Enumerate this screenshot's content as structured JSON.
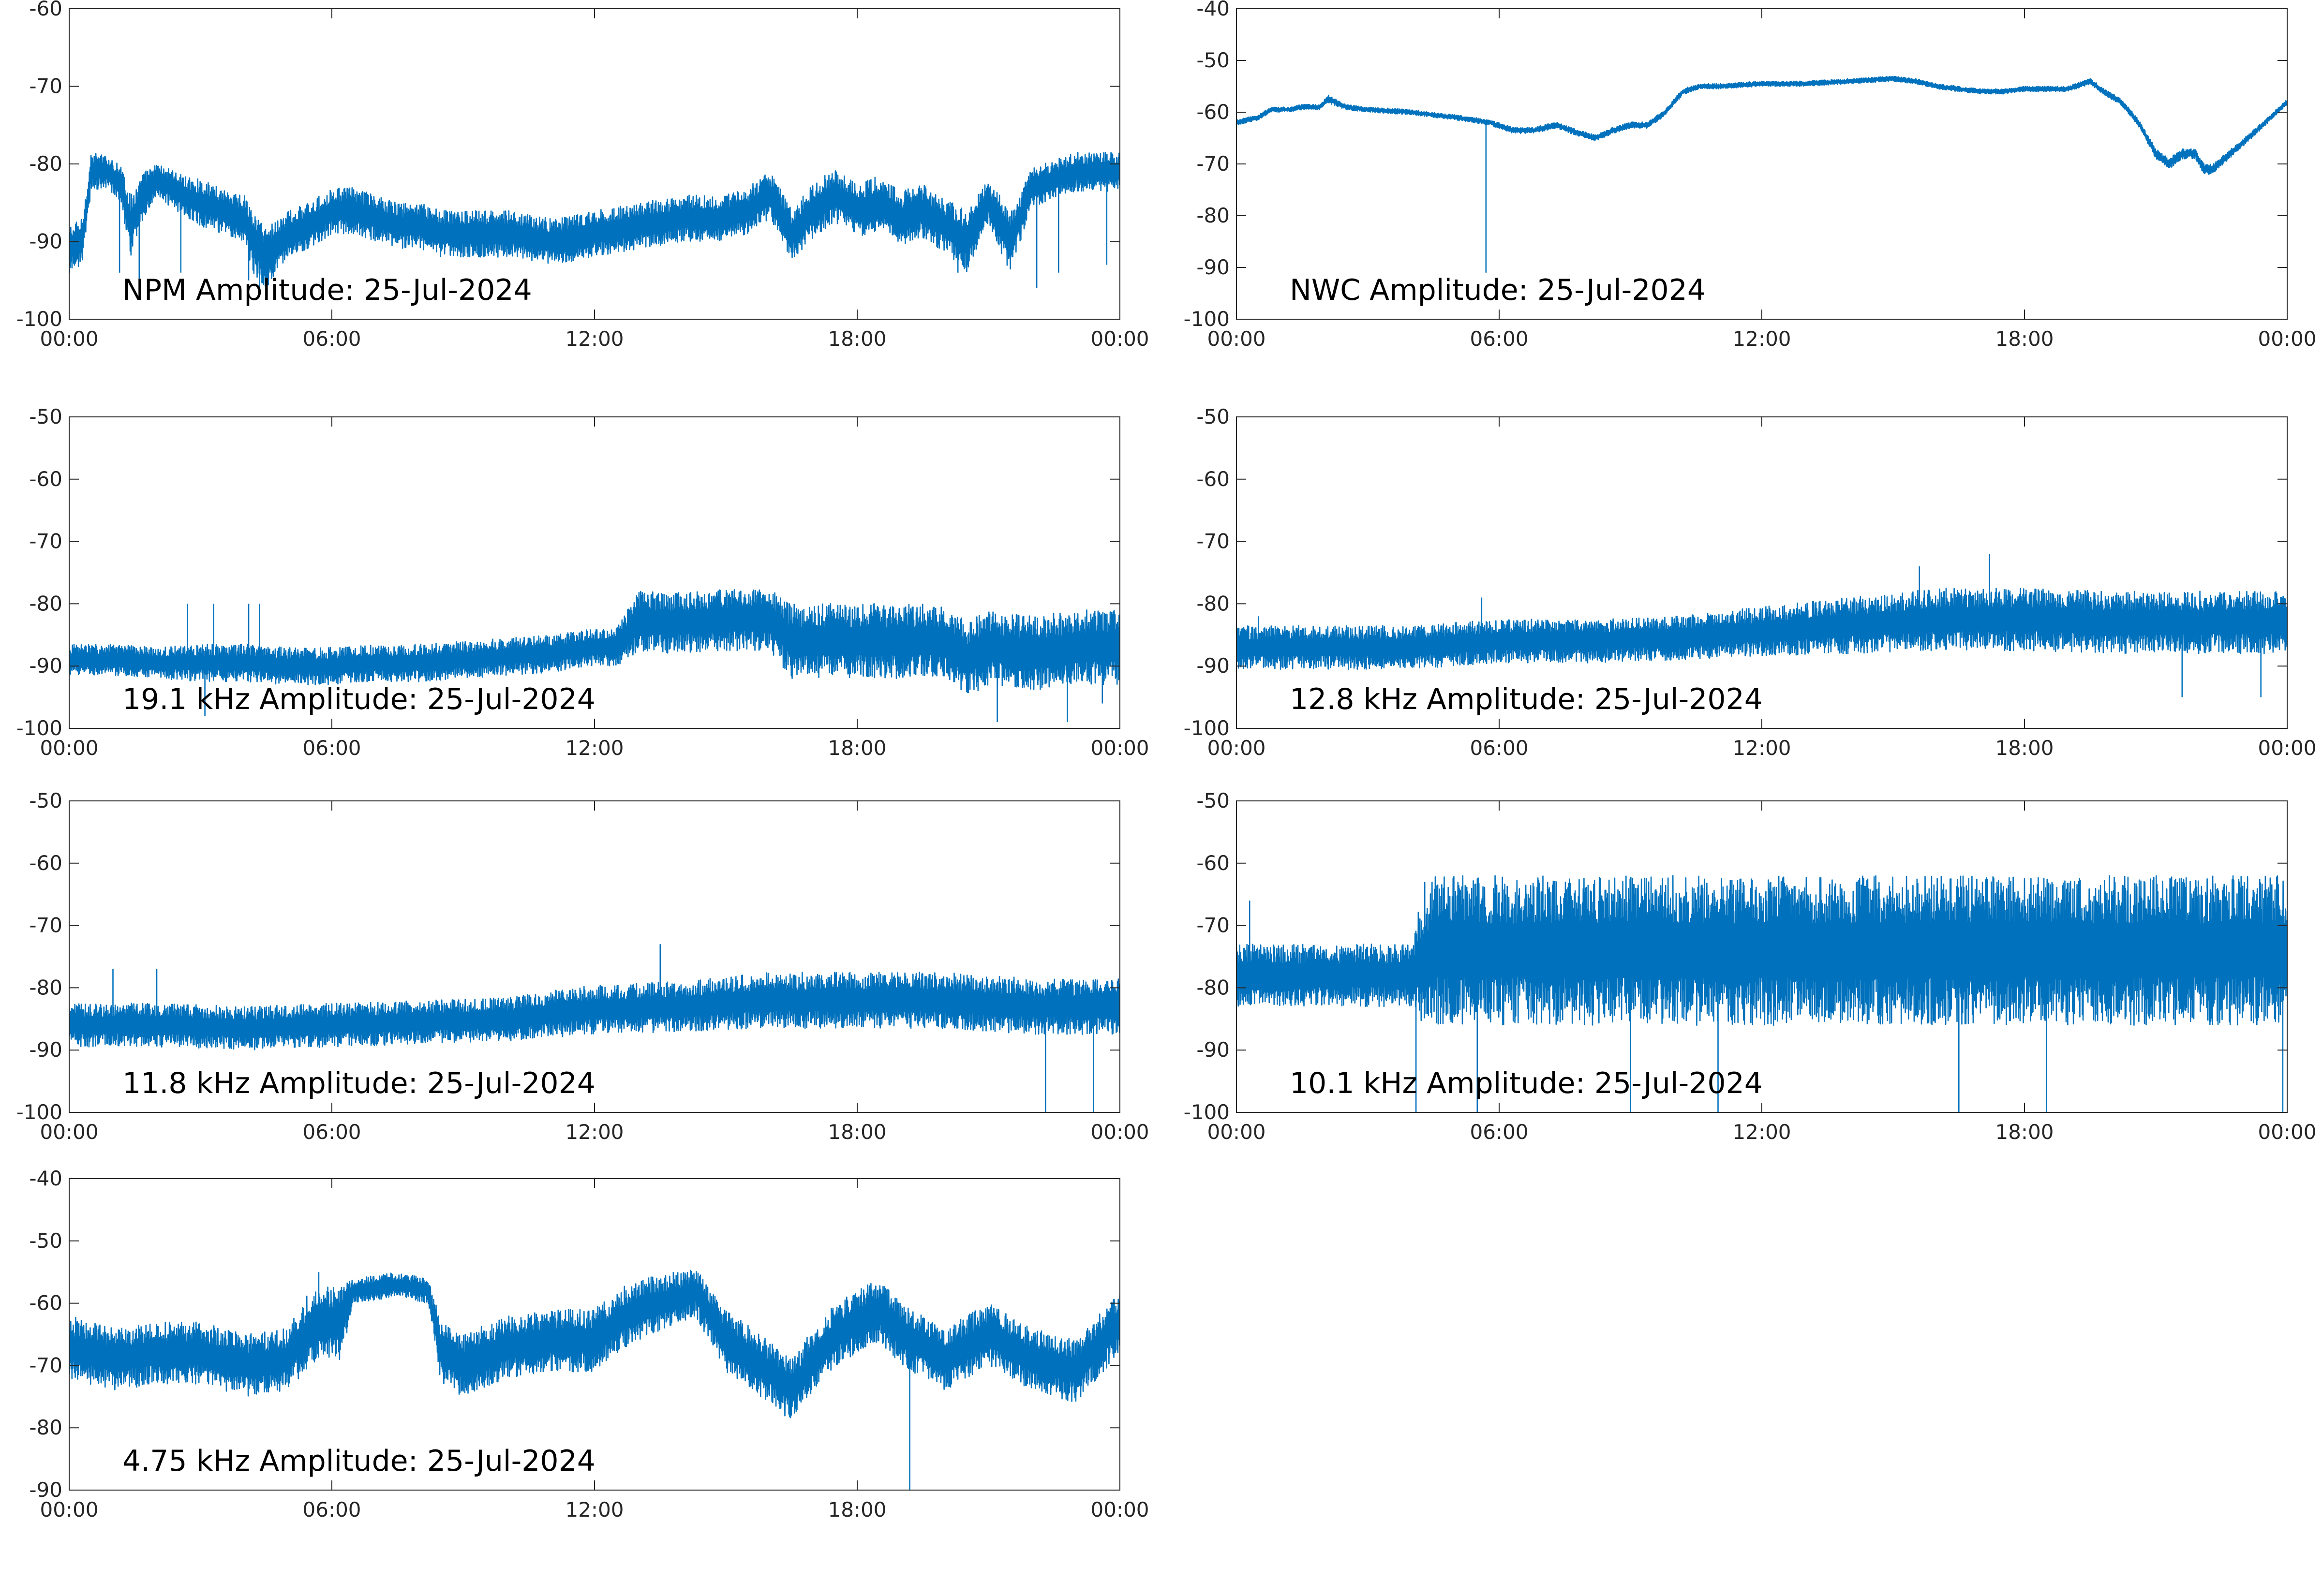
{
  "figure": {
    "line_color": "#0072bd",
    "axes_color": "#262626",
    "background": "#ffffff"
  },
  "chart_data": [
    {
      "type": "line",
      "title": "NPM Amplitude: 25-Jul-2024",
      "xlabel": "",
      "ylabel": "",
      "xticks": [
        "00:00",
        "06:00",
        "12:00",
        "18:00",
        "00:00"
      ],
      "xlim_hours": [
        0,
        24
      ],
      "ylim": [
        -100,
        -60
      ],
      "yticks": [
        -100,
        -90,
        -80,
        -70,
        -60
      ],
      "grid": false,
      "series": [
        {
          "x_hours": [
            0.0,
            0.3,
            0.5,
            0.9,
            1.2,
            1.4,
            1.7,
            2.0,
            2.3,
            2.6,
            3.0,
            3.5,
            4.0,
            4.2,
            4.5,
            5.0,
            5.5,
            6.0,
            6.5,
            7.0,
            7.5,
            8.0,
            8.5,
            9.0,
            9.5,
            10.0,
            11.0,
            12.0,
            13.0,
            14.0,
            15.0,
            15.5,
            16.0,
            16.5,
            17.0,
            17.5,
            18.0,
            18.5,
            19.0,
            19.5,
            20.0,
            20.5,
            21.0,
            21.5,
            22.0,
            22.5,
            23.0,
            23.5,
            24.0
          ],
          "values": [
            -91,
            -90,
            -81,
            -81,
            -83,
            -88,
            -84,
            -82,
            -83,
            -84,
            -85,
            -86,
            -87,
            -90,
            -92,
            -89,
            -88,
            -86,
            -86,
            -87,
            -88,
            -88,
            -89,
            -89,
            -89,
            -89,
            -90,
            -89,
            -88,
            -87,
            -87,
            -86,
            -84,
            -89,
            -86,
            -84,
            -86,
            -85,
            -87,
            -86,
            -88,
            -90,
            -85,
            -90,
            -83,
            -82,
            -81,
            -81,
            -81
          ],
          "spread": [
            3,
            3,
            2.5,
            2,
            3,
            4,
            3,
            2,
            2.5,
            2.5,
            3,
            3,
            3,
            4,
            4,
            3,
            3,
            3,
            3,
            3,
            3,
            3,
            3,
            3,
            3,
            3,
            3,
            3,
            3,
            3,
            3,
            3,
            3,
            3.5,
            3.5,
            3.5,
            3.5,
            3.5,
            3.5,
            3.5,
            3.5,
            4,
            3,
            4,
            2.5,
            2.5,
            2.5,
            2.5,
            2.5
          ],
          "spikes": [
            [
              1.15,
              -94
            ],
            [
              1.6,
              -96
            ],
            [
              2.55,
              -94
            ],
            [
              4.1,
              -95
            ],
            [
              4.35,
              -96
            ],
            [
              20.3,
              -94
            ],
            [
              22.1,
              -96
            ],
            [
              22.6,
              -94
            ],
            [
              23.7,
              -93
            ]
          ]
        }
      ]
    },
    {
      "type": "line",
      "title": "NWC Amplitude: 25-Jul-2024",
      "xlabel": "",
      "ylabel": "",
      "xticks": [
        "00:00",
        "06:00",
        "12:00",
        "18:00",
        "00:00"
      ],
      "xlim_hours": [
        0,
        24
      ],
      "ylim": [
        -100,
        -40
      ],
      "yticks": [
        -100,
        -90,
        -80,
        -70,
        -60,
        -50,
        -40
      ],
      "grid": false,
      "series": [
        {
          "x_hours": [
            0.0,
            0.5,
            0.8,
            1.2,
            1.5,
            1.9,
            2.1,
            2.5,
            3.0,
            4.0,
            5.0,
            5.8,
            6.3,
            6.8,
            7.3,
            7.8,
            8.2,
            8.6,
            9.0,
            9.4,
            9.8,
            10.2,
            10.6,
            11.0,
            12.0,
            13.0,
            14.0,
            15.0,
            15.5,
            16.0,
            16.5,
            17.0,
            17.5,
            18.0,
            19.0,
            19.5,
            19.8,
            20.2,
            20.6,
            21.0,
            21.3,
            21.6,
            21.9,
            22.1,
            22.3,
            22.7,
            23.1,
            23.5,
            24.0
          ],
          "values": [
            -62,
            -61,
            -59.5,
            -59.5,
            -59,
            -59,
            -57.5,
            -59,
            -59.5,
            -60,
            -61,
            -62,
            -63.5,
            -63.5,
            -62.5,
            -64,
            -65,
            -63.5,
            -62.5,
            -62.5,
            -60,
            -56,
            -55,
            -55,
            -54.5,
            -54.5,
            -54,
            -53.5,
            -54,
            -55,
            -55.5,
            -56,
            -56,
            -55.5,
            -55.5,
            -54,
            -56,
            -58,
            -62,
            -68,
            -70,
            -68,
            -68,
            -71,
            -71,
            -68,
            -65,
            -62,
            -58
          ],
          "spread": [
            0.5,
            0.5,
            0.5,
            0.5,
            0.5,
            0.5,
            0.8,
            0.5,
            0.5,
            0.5,
            0.5,
            0.5,
            0.6,
            0.6,
            0.6,
            0.6,
            0.6,
            0.6,
            0.6,
            0.6,
            0.6,
            0.6,
            0.5,
            0.5,
            0.5,
            0.5,
            0.5,
            0.5,
            0.5,
            0.5,
            0.5,
            0.5,
            0.5,
            0.5,
            0.5,
            0.6,
            0.6,
            0.6,
            0.7,
            1,
            1,
            1,
            1,
            1,
            1,
            0.8,
            0.7,
            0.6,
            0.5
          ],
          "spikes": [
            [
              5.7,
              -91
            ]
          ]
        }
      ]
    },
    {
      "type": "line",
      "title": "19.1 kHz Amplitude: 25-Jul-2024",
      "xlabel": "",
      "ylabel": "",
      "xticks": [
        "00:00",
        "06:00",
        "12:00",
        "18:00",
        "00:00"
      ],
      "xlim_hours": [
        0,
        24
      ],
      "ylim": [
        -100,
        -50
      ],
      "yticks": [
        -100,
        -90,
        -80,
        -70,
        -60,
        -50
      ],
      "grid": false,
      "series": [
        {
          "x_hours": [
            0.0,
            1.0,
            2.0,
            3.0,
            4.0,
            5.0,
            6.0,
            7.0,
            8.0,
            9.0,
            10.0,
            11.0,
            12.0,
            12.5,
            13.0,
            14.0,
            15.0,
            16.0,
            16.5,
            17.0,
            18.0,
            19.0,
            20.0,
            20.5,
            21.0,
            22.0,
            23.0,
            24.0
          ],
          "values": [
            -89,
            -89,
            -89.5,
            -89.5,
            -89.5,
            -90,
            -90,
            -89.5,
            -89.5,
            -89,
            -88.5,
            -88,
            -87,
            -87,
            -83,
            -83,
            -82.5,
            -82.5,
            -86,
            -86,
            -86,
            -86,
            -86,
            -89,
            -87,
            -88,
            -87,
            -87
          ],
          "spread": [
            2.5,
            2.5,
            2.5,
            3,
            3,
            3,
            3,
            3,
            3,
            3,
            3,
            3,
            3,
            3,
            5,
            5,
            5,
            5,
            6,
            6,
            6,
            6,
            6,
            6,
            6,
            6,
            6,
            6
          ],
          "spikes": [
            [
              2.7,
              -80
            ],
            [
              3.1,
              -98
            ],
            [
              3.3,
              -80
            ],
            [
              4.1,
              -80
            ],
            [
              4.35,
              -80
            ],
            [
              21.2,
              -99
            ],
            [
              22.8,
              -99
            ],
            [
              23.6,
              -96
            ]
          ]
        }
      ]
    },
    {
      "type": "line",
      "title": "12.8 kHz Amplitude: 25-Jul-2024",
      "xlabel": "",
      "ylabel": "",
      "xticks": [
        "00:00",
        "06:00",
        "12:00",
        "18:00",
        "00:00"
      ],
      "xlim_hours": [
        0,
        24
      ],
      "ylim": [
        -100,
        -50
      ],
      "yticks": [
        -100,
        -90,
        -80,
        -70,
        -60,
        -50
      ],
      "grid": false,
      "series": [
        {
          "x_hours": [
            0.0,
            2.0,
            4.0,
            6.0,
            8.0,
            10.0,
            12.0,
            14.0,
            16.0,
            18.0,
            20.0,
            22.0,
            24.0
          ],
          "values": [
            -87,
            -87,
            -87,
            -86,
            -86,
            -85.5,
            -84.5,
            -83.5,
            -82.5,
            -82.5,
            -83,
            -83,
            -83
          ],
          "spread": [
            3.5,
            3.5,
            3.5,
            3.5,
            3.5,
            3.5,
            4,
            4.5,
            5,
            5,
            5,
            5,
            5
          ],
          "spikes": [
            [
              0.5,
              -82
            ],
            [
              5.6,
              -79
            ],
            [
              15.6,
              -74
            ],
            [
              17.2,
              -72
            ],
            [
              21.6,
              -95
            ],
            [
              23.4,
              -95
            ]
          ]
        }
      ]
    },
    {
      "type": "line",
      "title": "11.8 kHz Amplitude: 25-Jul-2024",
      "xlabel": "",
      "ylabel": "",
      "xticks": [
        "00:00",
        "06:00",
        "12:00",
        "18:00",
        "00:00"
      ],
      "xlim_hours": [
        0,
        24
      ],
      "ylim": [
        -100,
        -50
      ],
      "yticks": [
        -100,
        -90,
        -80,
        -70,
        -60,
        -50
      ],
      "grid": false,
      "series": [
        {
          "x_hours": [
            0.0,
            2.0,
            4.0,
            6.0,
            8.0,
            10.0,
            12.0,
            14.0,
            16.0,
            18.0,
            20.0,
            22.0,
            24.0
          ],
          "values": [
            -86,
            -86,
            -86.5,
            -86,
            -85.5,
            -85,
            -83.5,
            -83,
            -82,
            -82,
            -82,
            -83,
            -83
          ],
          "spread": [
            3.5,
            3.5,
            3.5,
            3.5,
            3.5,
            3.5,
            4,
            4,
            4.5,
            4.5,
            4.5,
            4.5,
            4.5
          ],
          "spikes": [
            [
              1.0,
              -77
            ],
            [
              2.0,
              -77
            ],
            [
              13.5,
              -73
            ],
            [
              22.3,
              -100
            ],
            [
              23.4,
              -100
            ]
          ]
        }
      ]
    },
    {
      "type": "line",
      "title": "10.1 kHz Amplitude: 25-Jul-2024",
      "xlabel": "",
      "ylabel": "",
      "xticks": [
        "00:00",
        "06:00",
        "12:00",
        "18:00",
        "00:00"
      ],
      "xlim_hours": [
        0,
        24
      ],
      "ylim": [
        -100,
        -50
      ],
      "yticks": [
        -100,
        -90,
        -80,
        -70,
        -60,
        -50
      ],
      "grid": false,
      "series": [
        {
          "x_hours": [
            0.0,
            1.0,
            2.0,
            3.0,
            4.0,
            4.2,
            4.5,
            6.0,
            8.0,
            10.0,
            12.0,
            14.0,
            16.0,
            18.0,
            20.0,
            22.0,
            24.0
          ],
          "values": [
            -78,
            -78,
            -78,
            -78,
            -78,
            -76,
            -74,
            -74,
            -74,
            -74,
            -74,
            -74,
            -74,
            -74,
            -74,
            -74,
            -74
          ],
          "spread": [
            5,
            5,
            5,
            5,
            5,
            10,
            12,
            12,
            12,
            12,
            12,
            12,
            12,
            12,
            12,
            12,
            12
          ],
          "spikes": [
            [
              0.3,
              -66
            ],
            [
              4.1,
              -100
            ],
            [
              4.3,
              -63
            ],
            [
              5.5,
              -100
            ],
            [
              7.0,
              -62
            ],
            [
              9.0,
              -100
            ],
            [
              11.0,
              -100
            ],
            [
              14.3,
              -62
            ],
            [
              16.5,
              -100
            ],
            [
              18.5,
              -100
            ],
            [
              22.3,
              -62
            ],
            [
              23.9,
              -100
            ]
          ]
        }
      ]
    },
    {
      "type": "line",
      "title": "4.75 kHz Amplitude: 25-Jul-2024",
      "xlabel": "",
      "ylabel": "",
      "xticks": [
        "00:00",
        "06:00",
        "12:00",
        "18:00",
        "00:00"
      ],
      "xlim_hours": [
        0,
        24
      ],
      "ylim": [
        -90,
        -40
      ],
      "yticks": [
        -90,
        -80,
        -70,
        -60,
        -50,
        -40
      ],
      "grid": false,
      "series": [
        {
          "x_hours": [
            0.0,
            1.0,
            2.0,
            3.0,
            4.0,
            5.0,
            5.5,
            6.2,
            6.5,
            7.0,
            7.5,
            8.2,
            8.5,
            9.0,
            10.0,
            11.0,
            12.0,
            12.5,
            13.0,
            14.0,
            14.3,
            15.0,
            16.0,
            16.5,
            17.0,
            17.5,
            18.0,
            18.5,
            19.0,
            20.0,
            21.0,
            22.0,
            23.0,
            24.0
          ],
          "values": [
            -67,
            -69,
            -68,
            -68,
            -70,
            -69,
            -64,
            -63,
            -58,
            -57.5,
            -57,
            -58,
            -68,
            -70,
            -67,
            -66,
            -66,
            -63,
            -61,
            -59,
            -58,
            -66,
            -71,
            -74,
            -69,
            -65,
            -63,
            -61,
            -65,
            -69,
            -65,
            -69,
            -71,
            -63
          ],
          "spread": [
            5,
            5,
            5,
            5,
            5,
            5,
            6,
            6,
            2,
            2,
            2,
            2,
            5,
            5,
            5,
            5,
            5,
            5,
            5,
            4,
            4,
            5,
            5,
            5,
            5,
            5,
            5,
            5,
            5,
            5,
            5,
            5,
            5,
            5
          ],
          "spikes": [
            [
              19.2,
              -90
            ],
            [
              5.7,
              -55
            ],
            [
              13.8,
              -55
            ]
          ]
        }
      ]
    }
  ]
}
